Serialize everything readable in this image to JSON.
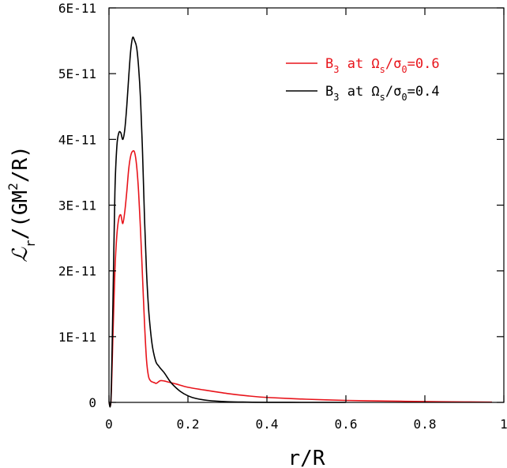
{
  "chart_data": {
    "type": "line",
    "title": "",
    "xlabel": "r/R",
    "ylabel": {
      "script": "ℒ",
      "sub": "r",
      "rest1": "/(GM",
      "sup": "2",
      "rest2": "/R)"
    },
    "xlim": [
      0,
      1
    ],
    "ylim": [
      0,
      6e-11
    ],
    "x_ticks": [
      {
        "value": 0,
        "label": "0"
      },
      {
        "value": 0.2,
        "label": "0.2"
      },
      {
        "value": 0.4,
        "label": "0.4"
      },
      {
        "value": 0.6,
        "label": "0.6"
      },
      {
        "value": 0.8,
        "label": "0.8"
      },
      {
        "value": 1,
        "label": "1"
      }
    ],
    "y_ticks": [
      {
        "value": 0,
        "label": "0"
      },
      {
        "value": 1e-11,
        "label": "1E-11"
      },
      {
        "value": 2e-11,
        "label": "2E-11"
      },
      {
        "value": 3e-11,
        "label": "3E-11"
      },
      {
        "value": 4e-11,
        "label": "4E-11"
      },
      {
        "value": 5e-11,
        "label": "5E-11"
      },
      {
        "value": 6e-11,
        "label": "6E-11"
      }
    ],
    "grid": false,
    "legend_position": "top-right",
    "series": [
      {
        "name": "B3 at Ωs/σ0=0.6",
        "legend": {
          "b": "B",
          "b_sub": "3",
          "mid": " at Ω",
          "s_sub": "s",
          "slash": "/σ",
          "zero_sub": "0",
          "end": "=0.6"
        },
        "color": "#e8141b",
        "x": [
          0,
          0.005,
          0.01,
          0.015,
          0.02,
          0.025,
          0.03,
          0.035,
          0.04,
          0.045,
          0.05,
          0.055,
          0.06,
          0.065,
          0.07,
          0.075,
          0.08,
          0.085,
          0.09,
          0.095,
          0.1,
          0.105,
          0.11,
          0.115,
          0.12,
          0.13,
          0.14,
          0.15,
          0.17,
          0.2,
          0.25,
          0.3,
          0.35,
          0.4,
          0.5,
          0.6,
          0.7,
          0.8,
          0.9,
          0.97
        ],
        "y": [
          0,
          2e-13,
          1e-11,
          2e-11,
          2.55e-11,
          2.8e-11,
          2.85e-11,
          2.72e-11,
          2.9e-11,
          3.2e-11,
          3.55e-11,
          3.75e-11,
          3.82e-11,
          3.8e-11,
          3.6e-11,
          3.2e-11,
          2.6e-11,
          1.9e-11,
          1.2e-11,
          6.5e-12,
          4e-12,
          3.3e-12,
          3.1e-12,
          3e-12,
          2.9e-12,
          3.3e-12,
          3.25e-12,
          3.1e-12,
          2.8e-12,
          2.3e-12,
          1.8e-12,
          1.35e-12,
          1e-12,
          7.5e-13,
          4.8e-13,
          3e-13,
          2e-13,
          1.3e-13,
          7e-14,
          4e-14
        ]
      },
      {
        "name": "B3 at Ωs/σ0=0.4",
        "legend": {
          "b": "B",
          "b_sub": "3",
          "mid": " at Ω",
          "s_sub": "s",
          "slash": "/σ",
          "zero_sub": "0",
          "end": "=0.4"
        },
        "color": "#000000",
        "x": [
          0,
          0.005,
          0.01,
          0.015,
          0.02,
          0.025,
          0.03,
          0.035,
          0.04,
          0.045,
          0.05,
          0.055,
          0.06,
          0.065,
          0.07,
          0.075,
          0.08,
          0.085,
          0.09,
          0.095,
          0.1,
          0.105,
          0.11,
          0.115,
          0.12,
          0.125,
          0.13,
          0.14,
          0.15,
          0.16,
          0.18,
          0.2,
          0.22,
          0.25,
          0.3,
          0.35,
          0.4,
          0.5,
          0.6
        ],
        "y": [
          0,
          5e-13,
          1.5e-11,
          3.2e-11,
          3.9e-11,
          4.1e-11,
          4.1e-11,
          4e-11,
          4.15e-11,
          4.5e-11,
          4.95e-11,
          5.35e-11,
          5.55e-11,
          5.5e-11,
          5.4e-11,
          5.1e-11,
          4.6e-11,
          3.8e-11,
          2.8e-11,
          2e-11,
          1.45e-11,
          1.1e-11,
          8.5e-12,
          7e-12,
          6e-12,
          5.6e-12,
          5.2e-12,
          4.5e-12,
          3.6e-12,
          2.8e-12,
          1.7e-12,
          1e-12,
          6e-13,
          3e-13,
          1e-13,
          4e-14,
          1e-14,
          0,
          0
        ]
      }
    ]
  }
}
